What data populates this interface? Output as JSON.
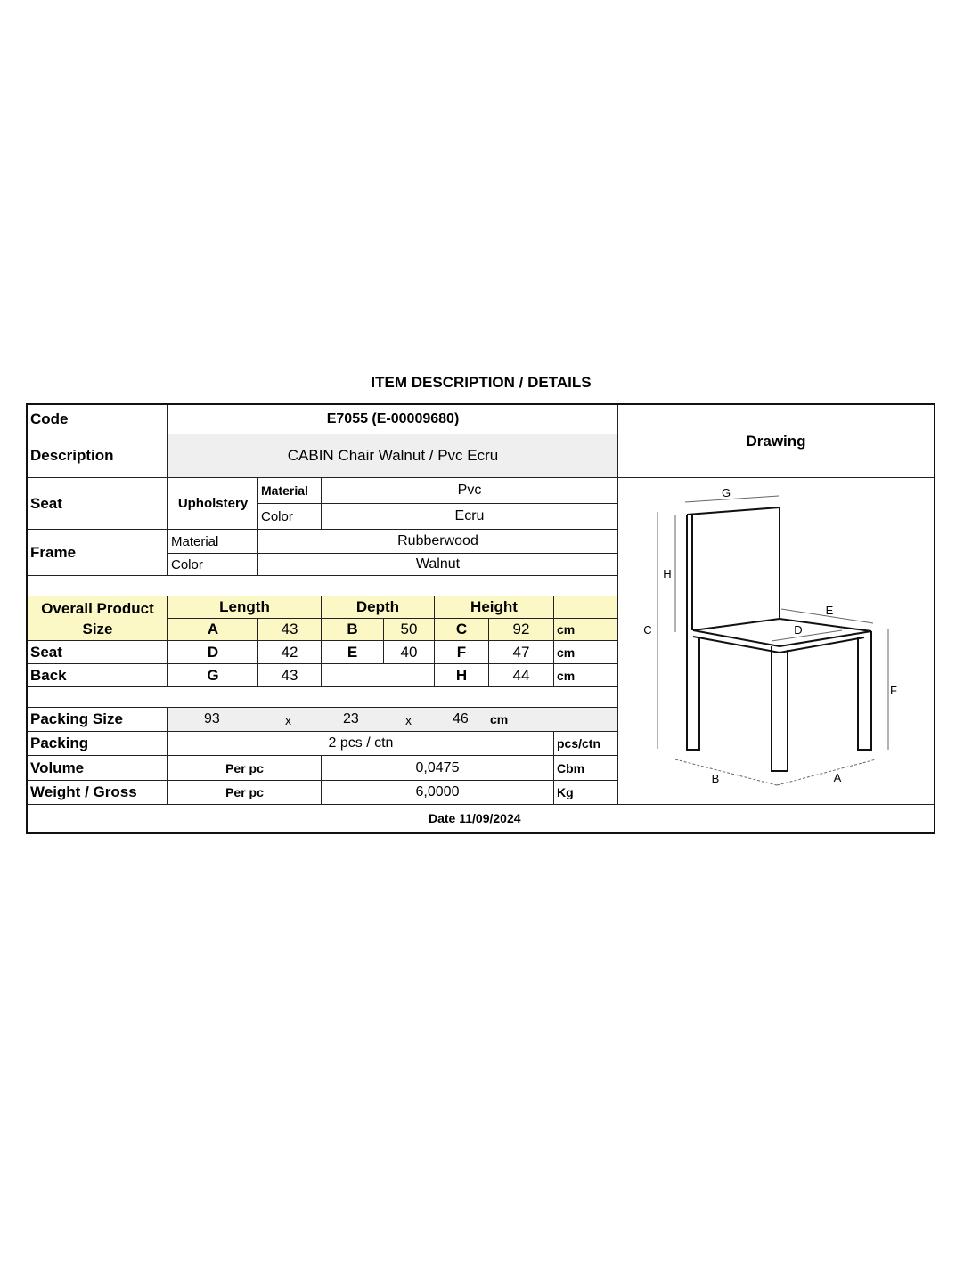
{
  "title": "ITEM DESCRIPTION / DETAILS",
  "code": {
    "label": "Code",
    "value": "E7055 (E-00009680)"
  },
  "description": {
    "label": "Description",
    "value": "CABIN Chair Walnut / Pvc Ecru"
  },
  "drawing_label": "Drawing",
  "seat": {
    "label": "Seat",
    "sub": "Upholstery",
    "material_label": "Material",
    "material": "Pvc",
    "color_label": "Color",
    "color": "Ecru"
  },
  "frame": {
    "label": "Frame",
    "material_label": "Material",
    "material": "Rubberwood",
    "color_label": "Color",
    "color": "Walnut"
  },
  "size": {
    "header": "Overall Product Size",
    "length": "Length",
    "depth": "Depth",
    "height": "Height",
    "rows": [
      {
        "label": "",
        "a": "A",
        "av": "43",
        "b": "B",
        "bv": "50",
        "c": "C",
        "cv": "92",
        "unit": "cm"
      },
      {
        "label": "Seat",
        "a": "D",
        "av": "42",
        "b": "E",
        "bv": "40",
        "c": "F",
        "cv": "47",
        "unit": "cm"
      },
      {
        "label": "Back",
        "a": "G",
        "av": "43",
        "b": "",
        "bv": "",
        "c": "H",
        "cv": "44",
        "unit": "cm"
      }
    ]
  },
  "packing_size": {
    "label": "Packing Size",
    "l": "93",
    "x1": "x",
    "w": "23",
    "x2": "x",
    "h": "46",
    "unit": "cm"
  },
  "packing": {
    "label": "Packing",
    "value": "2 pcs / ctn",
    "unit": "pcs/ctn"
  },
  "volume": {
    "label": "Volume",
    "per": "Per pc",
    "value": "0,0475",
    "unit": "Cbm"
  },
  "weight": {
    "label": "Weight / Gross",
    "per": "Per pc",
    "value": "6,0000",
    "unit": "Kg"
  },
  "date": "Date 11/09/2024",
  "drawing_letters": {
    "g": "G",
    "h": "H",
    "c": "C",
    "e": "E",
    "d": "D",
    "f": "F",
    "b": "B",
    "a": "A"
  }
}
